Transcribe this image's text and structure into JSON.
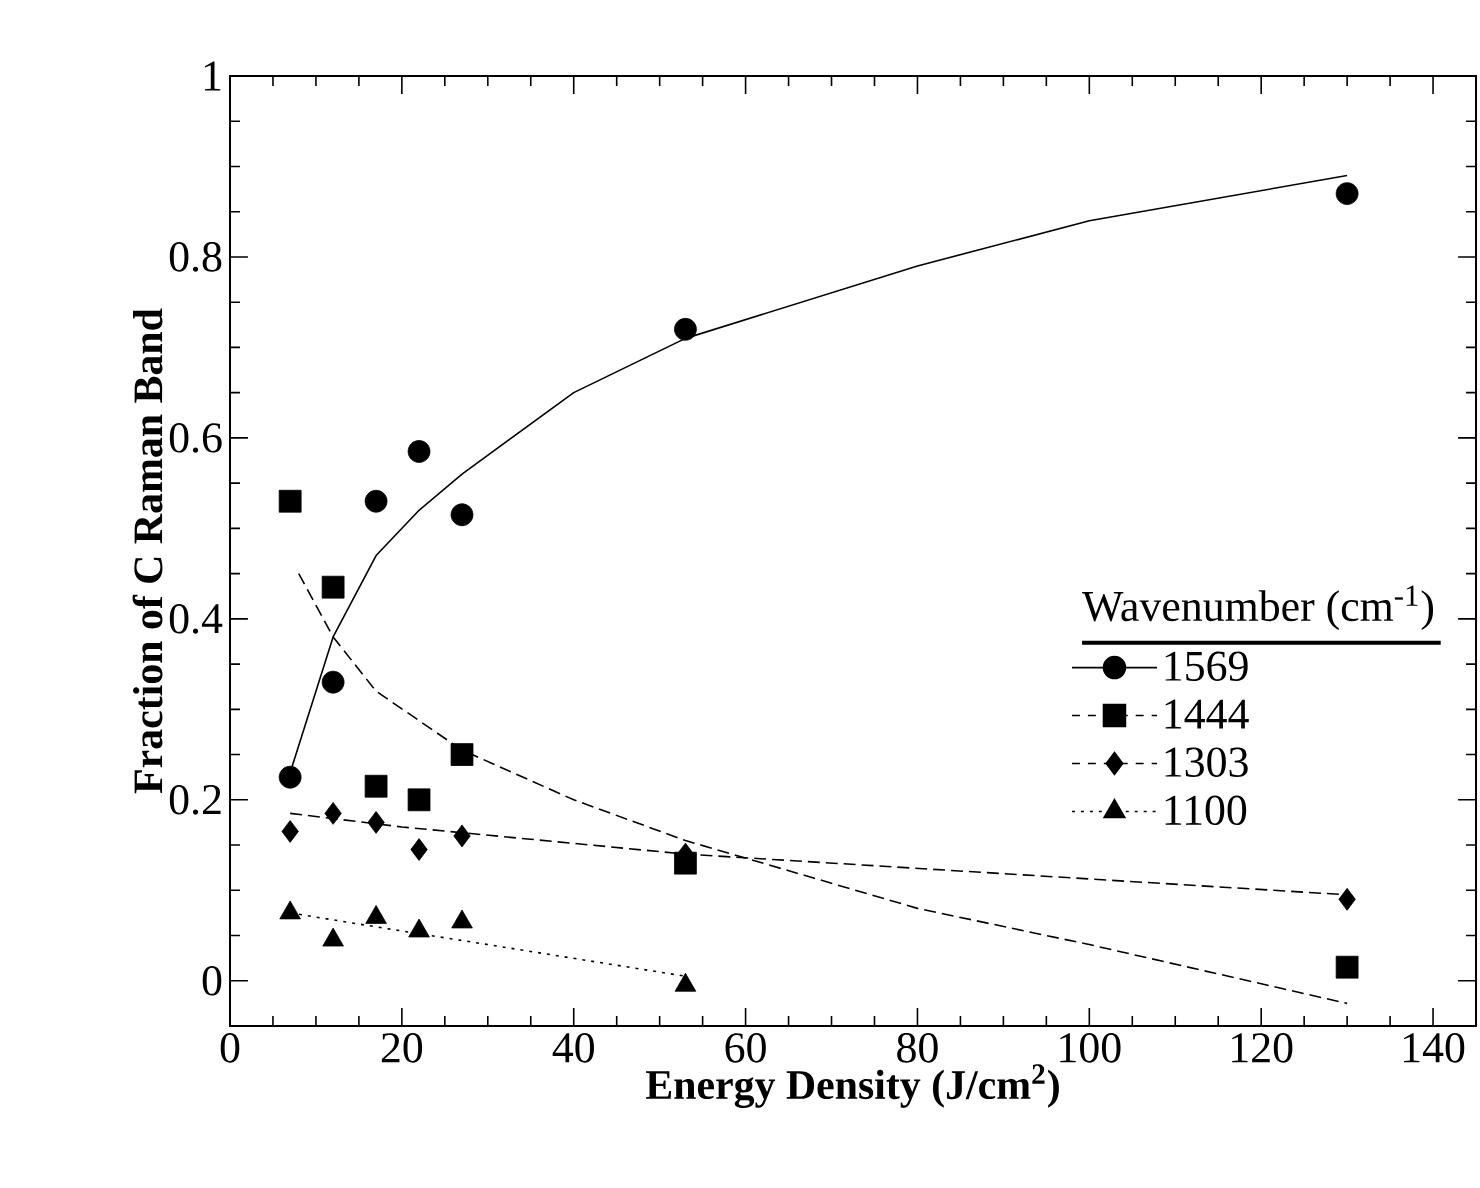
{
  "chart_data": {
    "type": "scatter",
    "xlabel": "Energy Density (J/cm$^{2}$)",
    "ylabel": "Fraction of C Raman Band",
    "legend_title": "Wavenumber (cm$^{-1}$)",
    "legend": "right",
    "xlim": [
      0,
      145
    ],
    "ylim": [
      -0.05,
      1
    ],
    "xticks": [
      0,
      20,
      40,
      60,
      80,
      100,
      120,
      140
    ],
    "yticks": [
      0,
      0.2,
      0.4,
      0.6,
      0.8,
      1
    ],
    "grid": false,
    "series": [
      {
        "name": "1569",
        "color": "#000000",
        "marker": "circle",
        "line_style": "solid",
        "x": [
          7,
          12,
          17,
          22,
          27,
          53,
          130
        ],
        "values": [
          0.225,
          0.33,
          0.53,
          0.585,
          0.515,
          0.72,
          0.87
        ]
      },
      {
        "name": "1444",
        "color": "#000000",
        "marker": "square",
        "line_style": "dashed",
        "x": [
          7,
          12,
          17,
          22,
          27,
          53,
          130
        ],
        "values": [
          0.53,
          0.435,
          0.215,
          0.2,
          0.25,
          0.13,
          0.015
        ]
      },
      {
        "name": "1303",
        "color": "#000000",
        "marker": "diamond",
        "line_style": "dashed",
        "x": [
          7,
          12,
          17,
          22,
          27,
          53,
          130
        ],
        "values": [
          0.165,
          0.185,
          0.175,
          0.145,
          0.16,
          0.14,
          0.09
        ]
      },
      {
        "name": "1100",
        "color": "#000000",
        "marker": "triangle",
        "line_style": "dotted",
        "x": [
          7,
          12,
          17,
          22,
          27,
          53
        ],
        "values": [
          0.075,
          0.045,
          0.07,
          0.055,
          0.065,
          -0.005
        ]
      },
      {
        "type": "line",
        "color": "#000000",
        "marker": "none",
        "line_style": "solid",
        "x": [
          7,
          10,
          12,
          17,
          22,
          27,
          40,
          53,
          80,
          100,
          130
        ],
        "values": [
          0.23,
          0.32,
          0.38,
          0.47,
          0.52,
          0.56,
          0.65,
          0.71,
          0.79,
          0.84,
          0.89
        ]
      },
      {
        "type": "line",
        "color": "#000000",
        "marker": "none",
        "line_style": "dashed",
        "x": [
          8,
          12,
          17,
          27,
          40,
          53,
          80,
          100,
          130
        ],
        "values": [
          0.45,
          0.38,
          0.32,
          0.255,
          0.2,
          0.155,
          0.08,
          0.04,
          -0.025
        ]
      },
      {
        "type": "line",
        "color": "#000000",
        "marker": "none",
        "line_style": "dashed",
        "x": [
          7,
          20,
          53,
          130
        ],
        "values": [
          0.185,
          0.17,
          0.14,
          0.095
        ]
      },
      {
        "type": "line",
        "color": "#000000",
        "marker": "none",
        "line_style": "dotted",
        "x": [
          7,
          20,
          30,
          53
        ],
        "values": [
          0.075,
          0.055,
          0.04,
          0.005
        ]
      }
    ]
  }
}
